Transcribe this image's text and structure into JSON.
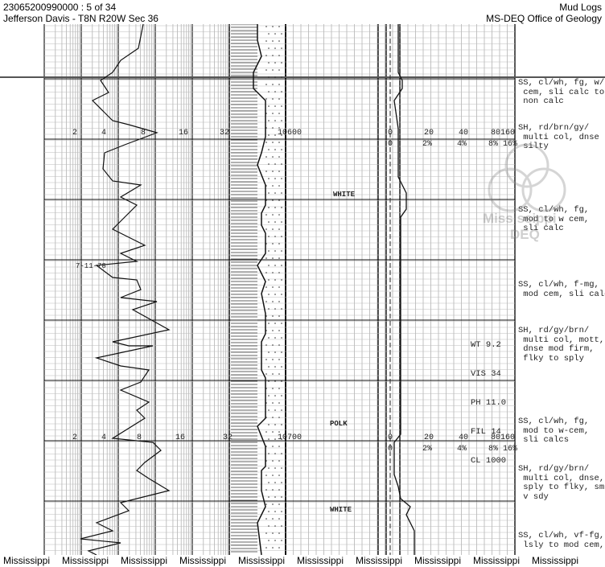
{
  "header": {
    "doc_id": "23065200990000 : 5 of 34",
    "location": "Jefferson Davis - T8N R20W Sec 36",
    "doc_type": "Mud Logs",
    "agency": "MS-DEQ Office of Geology"
  },
  "log": {
    "scale_rows": [
      {
        "drill_scale": [
          "2",
          "4",
          "8",
          "16",
          "32"
        ],
        "depth": "10600",
        "gas_scale": [
          "0",
          "20",
          "40",
          "80",
          "160"
        ],
        "pct_scale": [
          "0",
          "2%",
          "4%",
          "8%",
          "16%"
        ]
      },
      {
        "drill_scale": [
          "2",
          "4",
          "8",
          "16",
          "32"
        ],
        "depth": "10700",
        "gas_scale": [
          "0",
          "20",
          "40",
          "80",
          "160"
        ],
        "pct_scale": [
          "0",
          "2%",
          "4%",
          "8%",
          "16%"
        ]
      }
    ],
    "date_note": "7-11-78",
    "formations": [
      "WHITE",
      "POLK",
      "WHITE"
    ],
    "mud_properties": [
      "WT 9.2",
      "VIS 34",
      "PH 11.0",
      "FIL 14",
      "CL 1000"
    ],
    "descriptions": [
      "SS, cl/wh, fg, w/\n cem, sli calc to\n non calc",
      "SH, rd/brn/gy/\n multi col, dnse\n silty",
      "SS, cl/wh, fg,\n mod to w cem,\n sli calc",
      "SS, cl/wh, f-mg,\n mod cem, sli calc",
      "SH, rd/gy/brn/\n multi col, mott,\n dnse mod firm,\n flky to sply",
      "SS, cl/wh, fg,\n mod to w-cem,\n sli calcs",
      "SH, rd/gy/brn/\n multi col, dnse,\n sply to flky, sm\n v sdy",
      "SS, cl/wh, vf-fg,\n lsly to mod cem,"
    ]
  },
  "watermark": {
    "text1": "Mississippi",
    "text2": "DEQ"
  },
  "footer": [
    "Mississippi",
    "Mississippi",
    "Mississippi",
    "Mississippi",
    "Mississippi",
    "Mississippi",
    "Mississippi",
    "Mississippi",
    "Mississippi",
    "Mississippi"
  ]
}
